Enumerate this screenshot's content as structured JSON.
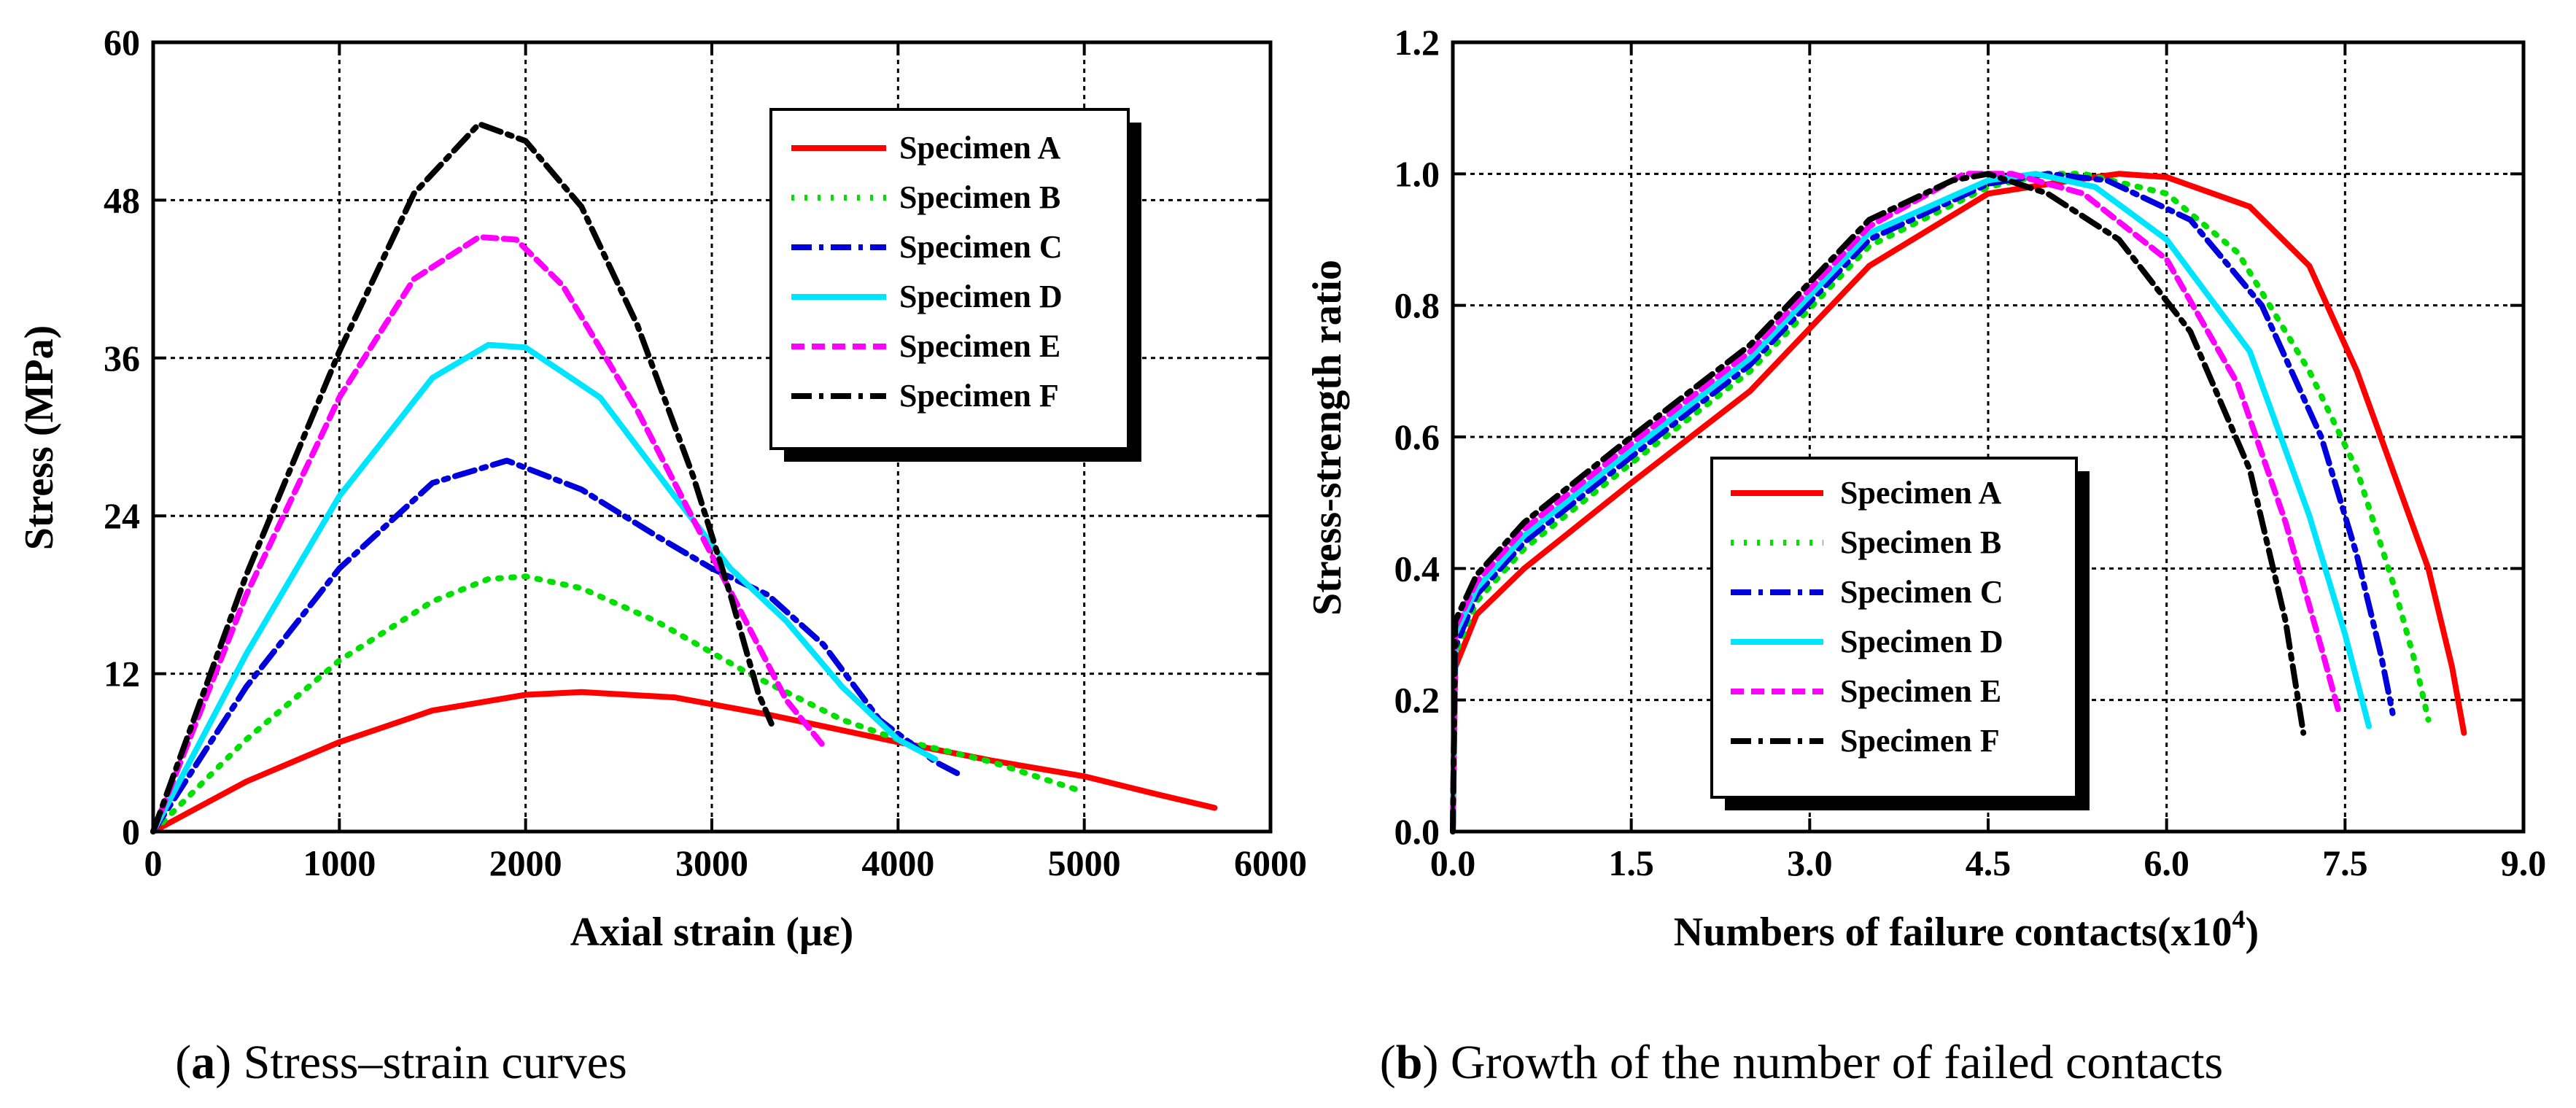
{
  "chart_data": [
    {
      "type": "line",
      "panel": "a",
      "caption_letter": "a",
      "caption_text": " Stress–strain curves",
      "xlabel": "Axial strain (με)",
      "ylabel": "Stress (MPa)",
      "xlim": [
        0,
        6000
      ],
      "ylim": [
        0,
        60
      ],
      "xticks": [
        0,
        1000,
        2000,
        3000,
        4000,
        5000,
        6000
      ],
      "yticks": [
        0,
        12,
        24,
        36,
        48,
        60
      ],
      "grid": true,
      "legend_position": "top-right",
      "series": [
        {
          "name": "Specimen A",
          "color": "#ff0000",
          "style": "solid",
          "x": [
            0,
            500,
            1000,
            1500,
            2000,
            2300,
            2800,
            3300,
            4000,
            4500,
            5000,
            5400,
            5700
          ],
          "y": [
            0,
            3.8,
            6.8,
            9.2,
            10.4,
            10.6,
            10.2,
            8.9,
            6.8,
            5.4,
            4.2,
            2.8,
            1.8
          ]
        },
        {
          "name": "Specimen B",
          "color": "#00e000",
          "style": "dotted",
          "x": [
            0,
            500,
            1000,
            1500,
            1800,
            2000,
            2300,
            2700,
            3200,
            3700,
            4000,
            4500,
            5000
          ],
          "y": [
            0,
            7,
            13,
            17.5,
            19.2,
            19.4,
            18.5,
            16,
            12,
            8.5,
            7,
            5.3,
            3
          ]
        },
        {
          "name": "Specimen C",
          "color": "#0000dd",
          "style": "dashdot",
          "x": [
            0,
            500,
            1000,
            1500,
            1900,
            2300,
            2700,
            3000,
            3300,
            3600,
            3900,
            4200,
            4350
          ],
          "y": [
            0,
            11,
            20,
            26.5,
            28.2,
            26,
            22.5,
            20,
            18,
            14.2,
            8.5,
            5.3,
            4.2
          ]
        },
        {
          "name": "Specimen D",
          "color": "#00e5ff",
          "style": "solid",
          "x": [
            0,
            500,
            1000,
            1500,
            1800,
            2000,
            2400,
            2800,
            3100,
            3400,
            3700,
            4000,
            4200
          ],
          "y": [
            0,
            13.5,
            25.5,
            34.5,
            37,
            36.8,
            33,
            25.5,
            20,
            16,
            11,
            7,
            5.5
          ]
        },
        {
          "name": "Specimen E",
          "color": "#ff00ff",
          "style": "dashed",
          "x": [
            0,
            500,
            1000,
            1400,
            1750,
            1950,
            2200,
            2600,
            3000,
            3200,
            3400,
            3600
          ],
          "y": [
            0,
            18,
            33,
            42,
            45.2,
            45,
            41.5,
            32,
            21,
            15.5,
            10,
            6.5
          ]
        },
        {
          "name": "Specimen F",
          "color": "#000000",
          "style": "dashdot",
          "x": [
            0,
            500,
            1000,
            1400,
            1750,
            2000,
            2300,
            2600,
            2900,
            3100,
            3250,
            3320
          ],
          "y": [
            0,
            19.5,
            36.5,
            48.5,
            53.8,
            52.5,
            47.5,
            38.5,
            27,
            18,
            10.5,
            8.2
          ]
        }
      ]
    },
    {
      "type": "line",
      "panel": "b",
      "caption_letter": "b",
      "caption_text": " Growth of the number of failed contacts",
      "xlabel": "Numbers of failure contacts(x10",
      "xlabel_sup": "4",
      "xlabel_end": ")",
      "ylabel": "Stress-strength ratio",
      "xlim": [
        0,
        9
      ],
      "ylim": [
        0,
        1.2
      ],
      "xticks": [
        "0.0",
        "1.5",
        "3.0",
        "4.5",
        "6.0",
        "7.5",
        "9.0"
      ],
      "yticks": [
        "0.0",
        "0.2",
        "0.4",
        "0.6",
        "0.8",
        "1.0",
        "1.2"
      ],
      "grid": true,
      "legend_position": "bottom-center",
      "series": [
        {
          "name": "Specimen A",
          "color": "#ff0000",
          "style": "solid",
          "x": [
            0,
            0.02,
            0.2,
            0.6,
            1.5,
            2.5,
            3.5,
            4.5,
            5.2,
            5.6,
            6.0,
            6.7,
            7.2,
            7.6,
            8.0,
            8.2,
            8.4,
            8.5
          ],
          "y": [
            0,
            0.25,
            0.33,
            0.4,
            0.53,
            0.67,
            0.86,
            0.97,
            0.99,
            1.0,
            0.995,
            0.95,
            0.86,
            0.7,
            0.5,
            0.4,
            0.25,
            0.15
          ]
        },
        {
          "name": "Specimen B",
          "color": "#00e000",
          "style": "dotted",
          "x": [
            0,
            0.02,
            0.2,
            0.6,
            1.5,
            2.5,
            3.5,
            4.5,
            5.0,
            5.3,
            6.0,
            6.6,
            7.2,
            7.6,
            7.9,
            8.1,
            8.2
          ],
          "y": [
            0,
            0.27,
            0.35,
            0.43,
            0.56,
            0.7,
            0.89,
            0.98,
            1.0,
            1.0,
            0.97,
            0.88,
            0.7,
            0.55,
            0.38,
            0.25,
            0.17
          ]
        },
        {
          "name": "Specimen C",
          "color": "#0000dd",
          "style": "dashdot",
          "x": [
            0,
            0.02,
            0.2,
            0.6,
            1.5,
            2.5,
            3.5,
            4.5,
            5.0,
            5.5,
            6.2,
            6.8,
            7.3,
            7.6,
            7.8,
            7.9
          ],
          "y": [
            0,
            0.28,
            0.36,
            0.44,
            0.57,
            0.71,
            0.9,
            0.985,
            1.0,
            0.99,
            0.93,
            0.8,
            0.6,
            0.42,
            0.27,
            0.18
          ]
        },
        {
          "name": "Specimen D",
          "color": "#00e5ff",
          "style": "solid",
          "x": [
            0,
            0.02,
            0.2,
            0.6,
            1.5,
            2.5,
            3.5,
            4.5,
            4.9,
            5.4,
            6.0,
            6.7,
            7.2,
            7.5,
            7.7
          ],
          "y": [
            0,
            0.3,
            0.37,
            0.45,
            0.58,
            0.72,
            0.91,
            0.99,
            1.0,
            0.98,
            0.9,
            0.73,
            0.48,
            0.3,
            0.16
          ]
        },
        {
          "name": "Specimen E",
          "color": "#ff00ff",
          "style": "dashed",
          "x": [
            0,
            0.02,
            0.2,
            0.6,
            1.5,
            2.5,
            3.5,
            4.3,
            4.7,
            5.3,
            6.0,
            6.6,
            7.0,
            7.3,
            7.45
          ],
          "y": [
            0,
            0.31,
            0.38,
            0.46,
            0.59,
            0.73,
            0.92,
            1.0,
            1.0,
            0.97,
            0.87,
            0.68,
            0.47,
            0.28,
            0.18
          ]
        },
        {
          "name": "Specimen F",
          "color": "#000000",
          "style": "dashdot",
          "x": [
            0,
            0.02,
            0.2,
            0.6,
            1.5,
            2.5,
            3.5,
            4.2,
            4.5,
            5.0,
            5.6,
            6.2,
            6.7,
            7.0,
            7.15
          ],
          "y": [
            0,
            0.32,
            0.39,
            0.47,
            0.6,
            0.74,
            0.93,
            0.99,
            1.0,
            0.97,
            0.9,
            0.76,
            0.55,
            0.32,
            0.15
          ]
        }
      ]
    }
  ]
}
